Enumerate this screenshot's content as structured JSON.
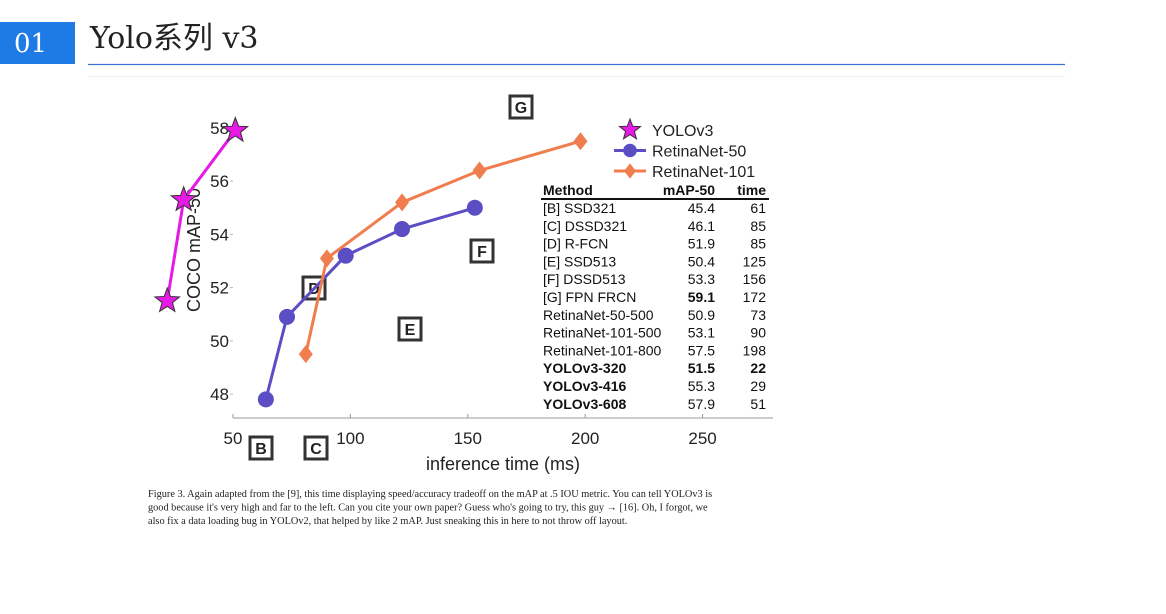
{
  "header": {
    "number": "01",
    "title": "Yolo系列 v3"
  },
  "chart_data": {
    "type": "line",
    "xlabel": "inference time (ms)",
    "ylabel": "COCO mAP-50",
    "xlim": [
      50,
      280
    ],
    "ylim": [
      47.1,
      59.5
    ],
    "xticks": [
      50,
      100,
      150,
      200,
      250
    ],
    "yticks": [
      48,
      50,
      52,
      54,
      56,
      58
    ],
    "grid": false,
    "legend": "upper right",
    "series": [
      {
        "name": "YOLOv3",
        "color": "#e619e6",
        "marker": "star",
        "x": [
          22,
          29,
          51
        ],
        "values": [
          51.5,
          55.3,
          57.9
        ]
      },
      {
        "name": "RetinaNet-50",
        "color": "#5b4ec4",
        "marker": "circle",
        "x": [
          64,
          73,
          98,
          122,
          153
        ],
        "values": [
          47.8,
          50.9,
          53.2,
          54.2,
          55.0
        ]
      },
      {
        "name": "RetinaNet-101",
        "color": "#f07d4e",
        "marker": "diamond",
        "x": [
          81,
          90,
          122,
          155,
          198
        ],
        "values": [
          49.5,
          53.1,
          55.2,
          56.4,
          57.5
        ]
      }
    ],
    "annotations": [
      "B",
      "C",
      "D",
      "E",
      "F",
      "G"
    ]
  },
  "table": {
    "header": [
      "Method",
      "mAP-50",
      "time"
    ],
    "rows": [
      [
        "[B] SSD321",
        45.4,
        61
      ],
      [
        "[C] DSSD321",
        46.1,
        85
      ],
      [
        "[D] R-FCN",
        51.9,
        85
      ],
      [
        "[E] SSD513",
        50.4,
        125
      ],
      [
        "[F] DSSD513",
        53.3,
        156
      ],
      [
        "[G] FPN FRCN",
        59.1,
        172
      ],
      [
        "RetinaNet-50-500",
        50.9,
        73
      ],
      [
        "RetinaNet-101-500",
        53.1,
        90
      ],
      [
        "RetinaNet-101-800",
        57.5,
        198
      ],
      [
        "YOLOv3-320",
        51.5,
        22
      ],
      [
        "YOLOv3-416",
        55.3,
        29
      ],
      [
        "YOLOv3-608",
        57.9,
        51
      ]
    ],
    "bold": [
      [
        5,
        1
      ],
      [
        9,
        0
      ],
      [
        9,
        1
      ],
      [
        9,
        2
      ],
      [
        10,
        0
      ],
      [
        11,
        0
      ]
    ]
  },
  "caption": [
    "Figure 3. Again adapted from the [9], this time displaying speed/accuracy tradeoff on the mAP at .5 IOU metric. You can tell YOLOv3 is",
    "good because it's very high and far to the left. Can you cite your own paper? Guess who's going to try, this guy → [16]. Oh, I forgot, we",
    "also fix a data loading bug in YOLOv2, that helped by like 2 mAP. Just sneaking this in here to not throw off layout."
  ]
}
